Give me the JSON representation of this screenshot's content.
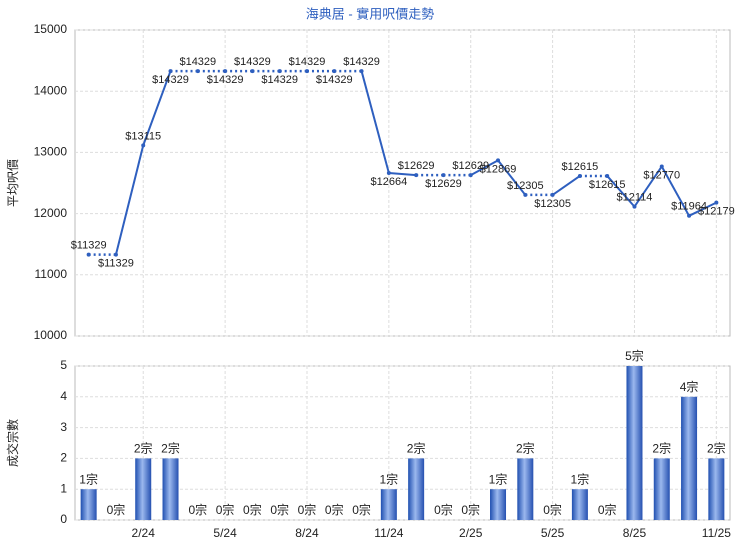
{
  "chart_data": [
    {
      "type": "line",
      "title": "海典居 - 實用呎價走勢",
      "y_label": "平均呎價",
      "color": "#2e5fbf",
      "values": [
        11329,
        11329,
        13115,
        14329,
        14329,
        14329,
        14329,
        14329,
        14329,
        14329,
        14329,
        12664,
        12629,
        12629,
        12629,
        12869,
        12305,
        12305,
        12615,
        12615,
        12114,
        12770,
        11964,
        12179
      ],
      "value_labels": [
        "$11329",
        "$11329",
        "$13115",
        "$14329",
        "$14329",
        "$14329",
        "$14329",
        "$14329",
        "$14329",
        "$14329",
        "$14329",
        "$12664",
        "$12629",
        "$12629",
        "$12629",
        "$12869",
        "$12305",
        "$12305",
        "$12615",
        "$12615",
        "$12114",
        "$12770",
        "$11964",
        "$12179"
      ],
      "ylim": [
        10000,
        15000
      ],
      "yticks": [
        10000,
        11000,
        12000,
        13000,
        14000,
        15000
      ],
      "grid": true
    },
    {
      "type": "bar",
      "y_label": "成交宗數",
      "color": "#3a66c4",
      "categories": [
        null,
        null,
        "2/24",
        null,
        null,
        "5/24",
        null,
        null,
        "8/24",
        null,
        null,
        "11/24",
        null,
        null,
        "2/25",
        null,
        null,
        "5/25",
        null,
        null,
        "8/25",
        null,
        null,
        "11/25"
      ],
      "values": [
        1,
        0,
        2,
        2,
        0,
        0,
        0,
        0,
        0,
        0,
        0,
        1,
        2,
        0,
        0,
        1,
        2,
        0,
        1,
        0,
        5,
        2,
        4,
        2
      ],
      "value_labels": [
        "1宗",
        "0宗",
        "2宗",
        "2宗",
        "0宗",
        "0宗",
        "0宗",
        "0宗",
        "0宗",
        "0宗",
        "0宗",
        "1宗",
        "2宗",
        "0宗",
        "0宗",
        "1宗",
        "2宗",
        "0宗",
        "1宗",
        "0宗",
        "5宗",
        "2宗",
        "4宗",
        "2宗"
      ],
      "ylim": [
        0,
        5
      ],
      "yticks": [
        0,
        1,
        2,
        3,
        4,
        5
      ],
      "grid": true
    }
  ]
}
